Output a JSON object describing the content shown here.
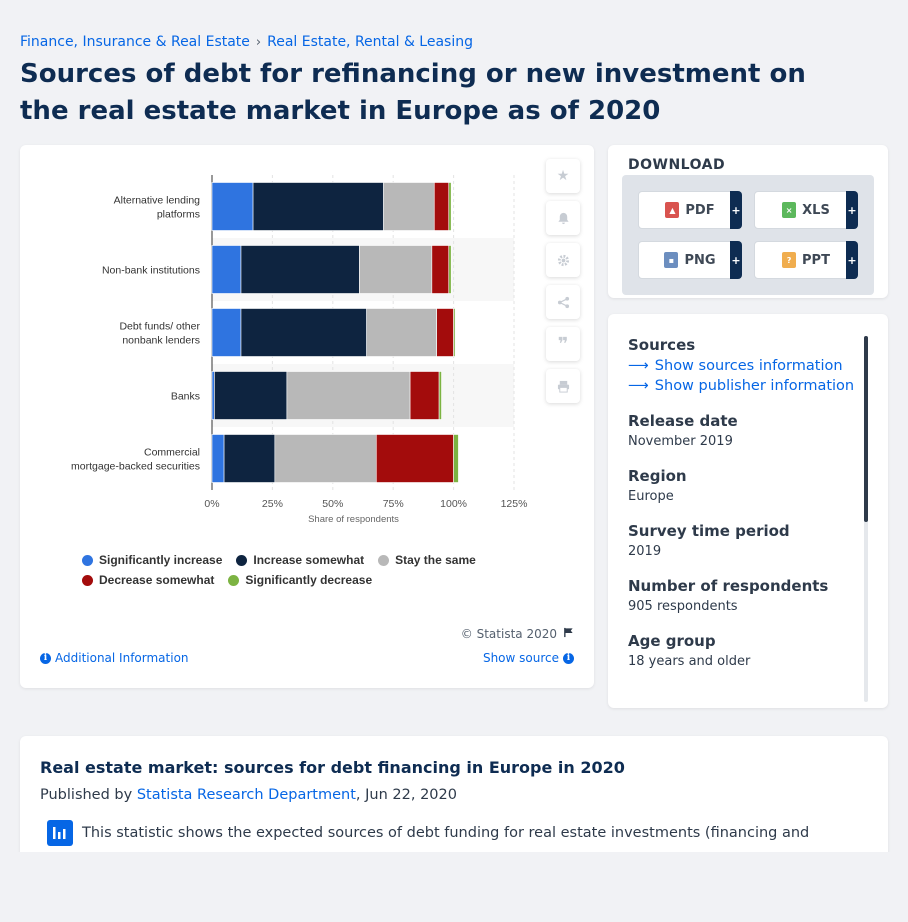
{
  "breadcrumb": {
    "items": [
      "Finance, Insurance & Real Estate",
      "Real Estate, Rental & Leasing"
    ],
    "separator": "›"
  },
  "page_title": "Sources of debt for refinancing or new investment on the real estate market in Europe as of 2020",
  "chart_data": {
    "type": "bar",
    "orientation": "horizontal",
    "stacked": true,
    "categories": [
      "Alternative lending platforms",
      "Non-bank institutions",
      "Debt funds/ other nonbank lenders",
      "Banks",
      "Commercial mortgage-backed securities"
    ],
    "series": [
      {
        "name": "Significantly increase",
        "color": "#2f74e0",
        "values": [
          17,
          12,
          12,
          1,
          5
        ]
      },
      {
        "name": "Increase somewhat",
        "color": "#0e2440",
        "values": [
          54,
          49,
          52,
          30,
          21
        ]
      },
      {
        "name": "Stay the same",
        "color": "#b8b8b8",
        "values": [
          21,
          30,
          29,
          51,
          42
        ]
      },
      {
        "name": "Decrease somewhat",
        "color": "#a30c0c",
        "values": [
          6,
          7,
          7,
          12,
          32
        ]
      },
      {
        "name": "Significantly decrease",
        "color": "#7cb342",
        "values": [
          1,
          1,
          0.5,
          1,
          2
        ]
      }
    ],
    "xlabel": "Share of respondents",
    "x_ticks": [
      "0%",
      "25%",
      "50%",
      "75%",
      "100%",
      "125%"
    ],
    "xlim": [
      0,
      125
    ],
    "legend_position": "bottom"
  },
  "chart_footer": {
    "copyright": "© Statista 2020",
    "additional_info": "Additional Information",
    "show_source": "Show source"
  },
  "tools": [
    "star-icon",
    "bell-icon",
    "gear-icon",
    "share-icon",
    "quote-icon",
    "print-icon"
  ],
  "download": {
    "title": "DOWNLOAD",
    "buttons": [
      {
        "label": "PDF",
        "icon_color": "#d9534f"
      },
      {
        "label": "XLS",
        "icon_color": "#5cb85c"
      },
      {
        "label": "PNG",
        "icon_color": "#6c8ebf"
      },
      {
        "label": "PPT",
        "icon_color": "#f0ad4e"
      }
    ],
    "plus": "+"
  },
  "info": {
    "sources_label": "Sources",
    "show_sources": "Show sources information",
    "show_publisher": "Show publisher information",
    "fields": [
      {
        "label": "Release date",
        "value": "November 2019"
      },
      {
        "label": "Region",
        "value": "Europe"
      },
      {
        "label": "Survey time period",
        "value": "2019"
      },
      {
        "label": "Number of respondents",
        "value": "905 respondents"
      },
      {
        "label": "Age group",
        "value": "18 years and older"
      }
    ]
  },
  "description": {
    "title": "Real estate market: sources for debt financing in Europe in 2020",
    "published_prefix": "Published by ",
    "publisher": "Statista Research Department",
    "date": ", Jun 22, 2020",
    "text": "This statistic shows the expected sources of debt funding for real estate investments (financing and"
  }
}
